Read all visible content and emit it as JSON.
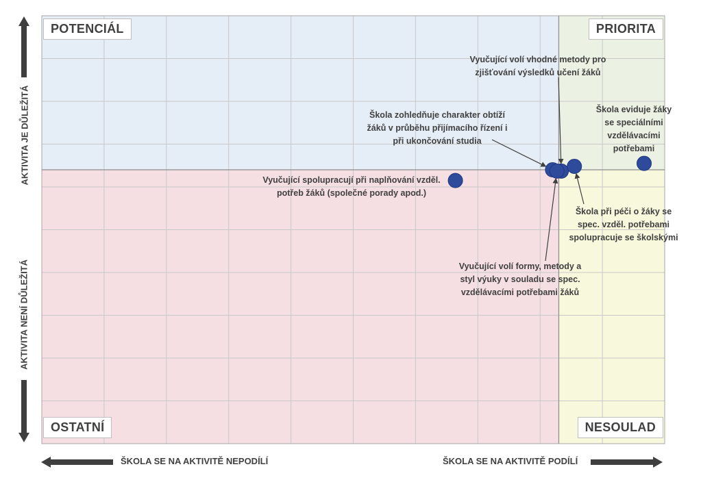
{
  "quadrants": {
    "top_left": "POTENCIÁL",
    "top_right": "PRIORITA",
    "bottom_left": "OSTATNÍ",
    "bottom_right": "NESOULAD"
  },
  "axes": {
    "y_top": "AKTIVITA JE DŮLEŽITÁ",
    "y_bottom": "AKTIVITA NENÍ DŮLEŽITÁ",
    "x_left": "ŠKOLA SE NA AKTIVITĚ NEPODÍLÍ",
    "x_right": "ŠKOLA SE NA AKTIVITĚ PODÍLÍ"
  },
  "colors": {
    "top_left_fill": "#e5edf7",
    "top_right_fill": "#ebf2e3",
    "bottom_left_fill": "#f5dfe2",
    "bottom_right_fill": "#f7f8dc",
    "point_fill": "#2e4a9a",
    "grid": "#c8c8c8",
    "arrow": "#3f3f3f"
  },
  "chart_data": {
    "type": "scatter",
    "xlim": [
      0,
      1
    ],
    "ylim": [
      0,
      1
    ],
    "x_split": 0.83,
    "y_split": 0.64,
    "grid": true,
    "points": [
      {
        "label_lines": [
          "Vyučující volí vhodné metody pro",
          "zjišťování výsledků učení žáků"
        ],
        "x": 0.834,
        "y": 0.637
      },
      {
        "label_lines": [
          "Škola zohledňuje charakter obtíží",
          "žáků v průběhu přijímacího řízení i",
          "při ukončování studia"
        ],
        "x": 0.82,
        "y": 0.64
      },
      {
        "label_lines": [
          "Škola eviduje žáky",
          "se speciálními",
          "vzdělávacími",
          "potřebami"
        ],
        "x": 0.967,
        "y": 0.655
      },
      {
        "label_lines": [
          "Vyučující spolupracují při naplňování vzděl.",
          "potřeb žáků (společné porady apod.)"
        ],
        "x": 0.664,
        "y": 0.615
      },
      {
        "label_lines": [
          "Škola při péči o žáky se",
          "spec. vzděl. potřebami",
          "spolupracuje se školskými"
        ],
        "x": 0.855,
        "y": 0.648
      },
      {
        "label_lines": [
          "Vyučující volí formy, metody a",
          "styl výuky v souladu se spec.",
          "vzdělávacími potřebami žáků"
        ],
        "x": 0.827,
        "y": 0.637
      }
    ]
  }
}
